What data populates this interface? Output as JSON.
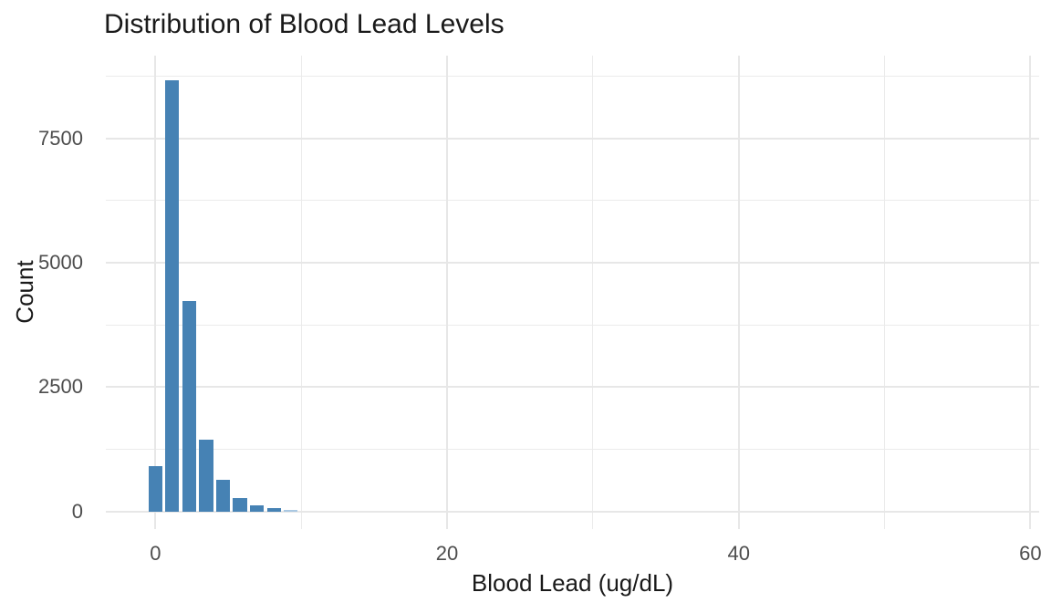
{
  "chart_data": {
    "type": "bar",
    "subtype": "histogram",
    "title": "Distribution of Blood Lead Levels",
    "xlabel": "Blood Lead (ug/dL)",
    "ylabel": "Count",
    "bin_width": 1.16,
    "bin_centers": [
      0,
      1.16,
      2.32,
      3.48,
      4.64,
      5.8,
      6.96,
      8.12,
      9.28
    ],
    "values": [
      915,
      8670,
      4240,
      1450,
      640,
      275,
      120,
      80,
      25
    ],
    "x_ticks": [
      0,
      20,
      40,
      60
    ],
    "x_minor_ticks": [
      10,
      30,
      50
    ],
    "y_ticks": [
      0,
      2500,
      5000,
      7500
    ],
    "y_minor_ticks": [
      1250,
      3750,
      6250,
      8750
    ],
    "xlim": [
      -3.4,
      60.6
    ],
    "ylim": [
      -350,
      9160
    ],
    "grid": true,
    "legend": "none",
    "bar_color": "#4682b4",
    "bar_color_faint": "#aac8e2",
    "grid_color_major": "#e7e7e7",
    "grid_color_minor": "#ebebeb",
    "background": "#ffffff"
  }
}
